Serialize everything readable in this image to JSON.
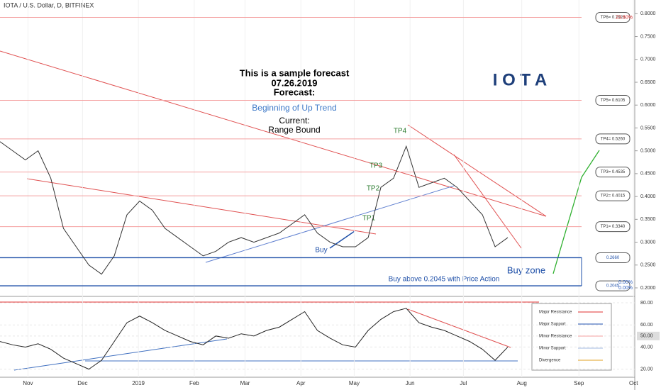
{
  "chart_data": [
    {
      "type": "line",
      "title": "IOTA / U.S. Dollar, D, BITFINEX",
      "color": "#333333",
      "x": [
        0,
        1,
        2,
        3,
        4,
        5,
        6,
        7,
        8,
        9,
        10,
        11,
        12,
        13,
        14,
        15,
        16,
        17,
        18,
        19,
        20,
        21,
        22,
        23,
        24,
        25,
        26,
        27,
        28,
        29,
        30,
        31,
        32,
        33,
        34,
        35,
        36,
        37,
        38,
        39,
        40
      ],
      "values": [
        0.52,
        0.5,
        0.48,
        0.5,
        0.44,
        0.33,
        0.29,
        0.25,
        0.23,
        0.27,
        0.36,
        0.39,
        0.37,
        0.33,
        0.31,
        0.29,
        0.27,
        0.28,
        0.3,
        0.31,
        0.3,
        0.31,
        0.32,
        0.34,
        0.36,
        0.32,
        0.3,
        0.29,
        0.29,
        0.31,
        0.42,
        0.44,
        0.51,
        0.42,
        0.43,
        0.44,
        0.42,
        0.39,
        0.36,
        0.29,
        0.31
      ],
      "xlim": [
        0,
        50
      ],
      "xticks": [
        {
          "value": 2.2,
          "label": "Nov"
        },
        {
          "value": 6.5,
          "label": "Dec"
        },
        {
          "value": 10.9,
          "label": "2019"
        },
        {
          "value": 15.3,
          "label": "Feb"
        },
        {
          "value": 19.3,
          "label": "Mar"
        },
        {
          "value": 23.7,
          "label": "Apr"
        },
        {
          "value": 27.9,
          "label": "May"
        },
        {
          "value": 32.3,
          "label": "Jun"
        },
        {
          "value": 36.5,
          "label": "Jul"
        },
        {
          "value": 41.1,
          "label": "Aug"
        },
        {
          "value": 45.6,
          "label": "Sep"
        },
        {
          "value": 49.9,
          "label": "Oct"
        }
      ],
      "ylim": [
        0.186,
        0.83
      ],
      "yticks": [
        {
          "value": 0.2,
          "label": "0.2000"
        },
        {
          "value": 0.25,
          "label": "0.2500"
        },
        {
          "value": 0.3,
          "label": "0.3000"
        },
        {
          "value": 0.35,
          "label": "0.3500"
        },
        {
          "value": 0.4,
          "label": "0.4000"
        },
        {
          "value": 0.45,
          "label": "0.4500"
        },
        {
          "value": 0.5,
          "label": "0.5000"
        },
        {
          "value": 0.55,
          "label": "0.5500"
        },
        {
          "value": 0.6,
          "label": "0.6000"
        },
        {
          "value": 0.65,
          "label": "0.6500"
        },
        {
          "value": 0.7,
          "label": "0.7000"
        },
        {
          "value": 0.75,
          "label": "0.7500"
        },
        {
          "value": 0.8,
          "label": "0.8000"
        }
      ],
      "levels": [
        {
          "value": 0.792,
          "label": "TP6= 0.7920",
          "color": "#f4a0a0"
        },
        {
          "value": 0.6105,
          "label": "TP5= 0.6105",
          "color": "#f4a0a0"
        },
        {
          "value": 0.526,
          "label": "TP4= 0.5260",
          "color": "#f4a0a0"
        },
        {
          "value": 0.4535,
          "label": "TP3= 0.4535",
          "color": "#f4a0a0"
        },
        {
          "value": 0.4015,
          "label": "TP2= 0.4015",
          "color": "#f4a0a0"
        },
        {
          "value": 0.334,
          "label": "TP1= 0.3340",
          "color": "#f4a0a0"
        },
        {
          "value": 0.266,
          "label": "0.2660",
          "color": "#1e4fa8"
        },
        {
          "value": 0.2045,
          "label": "0.2045",
          "color": "#1e4fa8"
        }
      ],
      "fib_labels": [
        {
          "value": 0.792,
          "label": "23.60%"
        },
        {
          "value": 0.2125,
          "label": "0.00%"
        },
        {
          "value": 0.2,
          "label": "0.00%"
        }
      ],
      "forecast": [
        "This is a sample forecast",
        "07.26.2019",
        "Forecast:"
      ],
      "trend": "Beginning of Up Trend",
      "current": [
        "Current:",
        "Range Bound"
      ],
      "symbol": "I O T A",
      "tp_marks": [
        "TP1",
        "TP2",
        "TP3",
        "TP4"
      ],
      "buy": "Buy",
      "buy_zone": "Buy zone",
      "buy_note": "Buy above 0.2045 with Price Action"
    },
    {
      "type": "line",
      "color": "#222222",
      "x": [
        0,
        1,
        2,
        3,
        4,
        5,
        6,
        7,
        8,
        9,
        10,
        11,
        12,
        13,
        14,
        15,
        16,
        17,
        18,
        19,
        20,
        21,
        22,
        23,
        24,
        25,
        26,
        27,
        28,
        29,
        30,
        31,
        32,
        33,
        34,
        35,
        36,
        37,
        38,
        39,
        40
      ],
      "values": [
        45,
        42,
        40,
        43,
        38,
        30,
        25,
        20,
        28,
        45,
        62,
        68,
        62,
        55,
        50,
        45,
        42,
        50,
        48,
        52,
        50,
        55,
        58,
        65,
        72,
        55,
        48,
        42,
        40,
        55,
        65,
        72,
        75,
        62,
        58,
        55,
        50,
        45,
        38,
        28,
        40
      ],
      "xlim": [
        0,
        50
      ],
      "ylim": [
        14,
        84.5
      ],
      "yticks": [
        {
          "value": 20,
          "label": "20.00"
        },
        {
          "value": 40,
          "label": "40.00"
        },
        {
          "value": 50,
          "label": "50.00"
        },
        {
          "value": 60,
          "label": "60.00"
        },
        {
          "value": 80,
          "label": "80.00"
        }
      ],
      "legend": [
        {
          "name": "Major Resistance",
          "color": "#e03030"
        },
        {
          "name": "Major Support",
          "color": "#2050b0"
        },
        {
          "name": "Minor Resistance",
          "color": "#f4a0a0"
        },
        {
          "name": "Minor Support",
          "color": "#a0b8e0"
        },
        {
          "name": "Divergence",
          "color": "#e0a020"
        }
      ]
    }
  ]
}
